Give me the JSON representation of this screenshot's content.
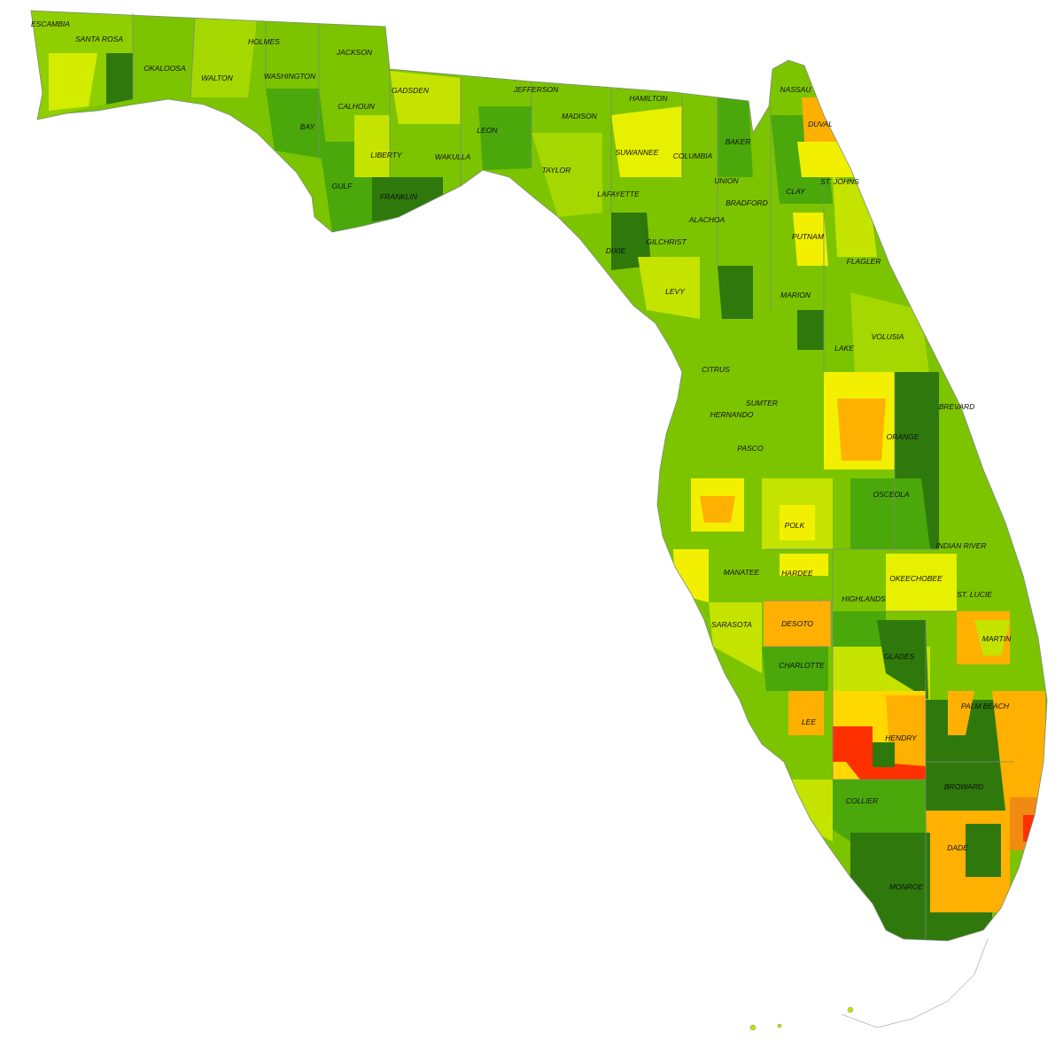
{
  "map": {
    "region": "Florida",
    "colors": {
      "water": "#ffffff",
      "light_green": "#c4e400",
      "mid_green": "#7cc400",
      "green": "#4aa80a",
      "dark_green": "#2e780c",
      "yellow": "#f2f000",
      "gold": "#ffd800",
      "orange": "#ffb000",
      "dark_orange": "#f08a10",
      "red": "#ff3000",
      "boundary": "#7a8a7a"
    },
    "counties": [
      "ESCAMBIA",
      "SANTA ROSA",
      "OKALOOSA",
      "WALTON",
      "HOLMES",
      "WASHINGTON",
      "JACKSON",
      "CALHOUN",
      "BAY",
      "GADSDEN",
      "JEFFERSON",
      "HAMILTON",
      "NASSAU",
      "MADISON",
      "LEON",
      "LIBERTY",
      "WAKULLA",
      "GULF",
      "FRANKLIN",
      "SUWANNEE",
      "TAYLOR",
      "BAKER",
      "COLUMBIA",
      "DUVAL",
      "UNION",
      "CLAY",
      "ST. JOHNS",
      "BRADFORD",
      "LAFAYETTE",
      "ALACHOA",
      "GILCHRIST",
      "DIXIE",
      "PUTNAM",
      "FLAGLER",
      "LEVY",
      "MARION",
      "VOLUSIA",
      "LAKE",
      "CITRUS",
      "SUMTER",
      "BREVARD",
      "HERNANDO",
      "ORANGE",
      "PASCO",
      "OSCEOLA",
      "POLK",
      "INDIAN RIVER",
      "MANATEE",
      "HARDEE",
      "OKEECHOBEE",
      "HIGHLANDS",
      "ST. LUCIE",
      "DESOTO",
      "SARASOTA",
      "MARTIN",
      "CHARLOTTE",
      "GLADES",
      "PALM BEACH",
      "LEE",
      "HENDRY",
      "BROWARD",
      "COLLIER",
      "DADE",
      "MONROE"
    ]
  }
}
